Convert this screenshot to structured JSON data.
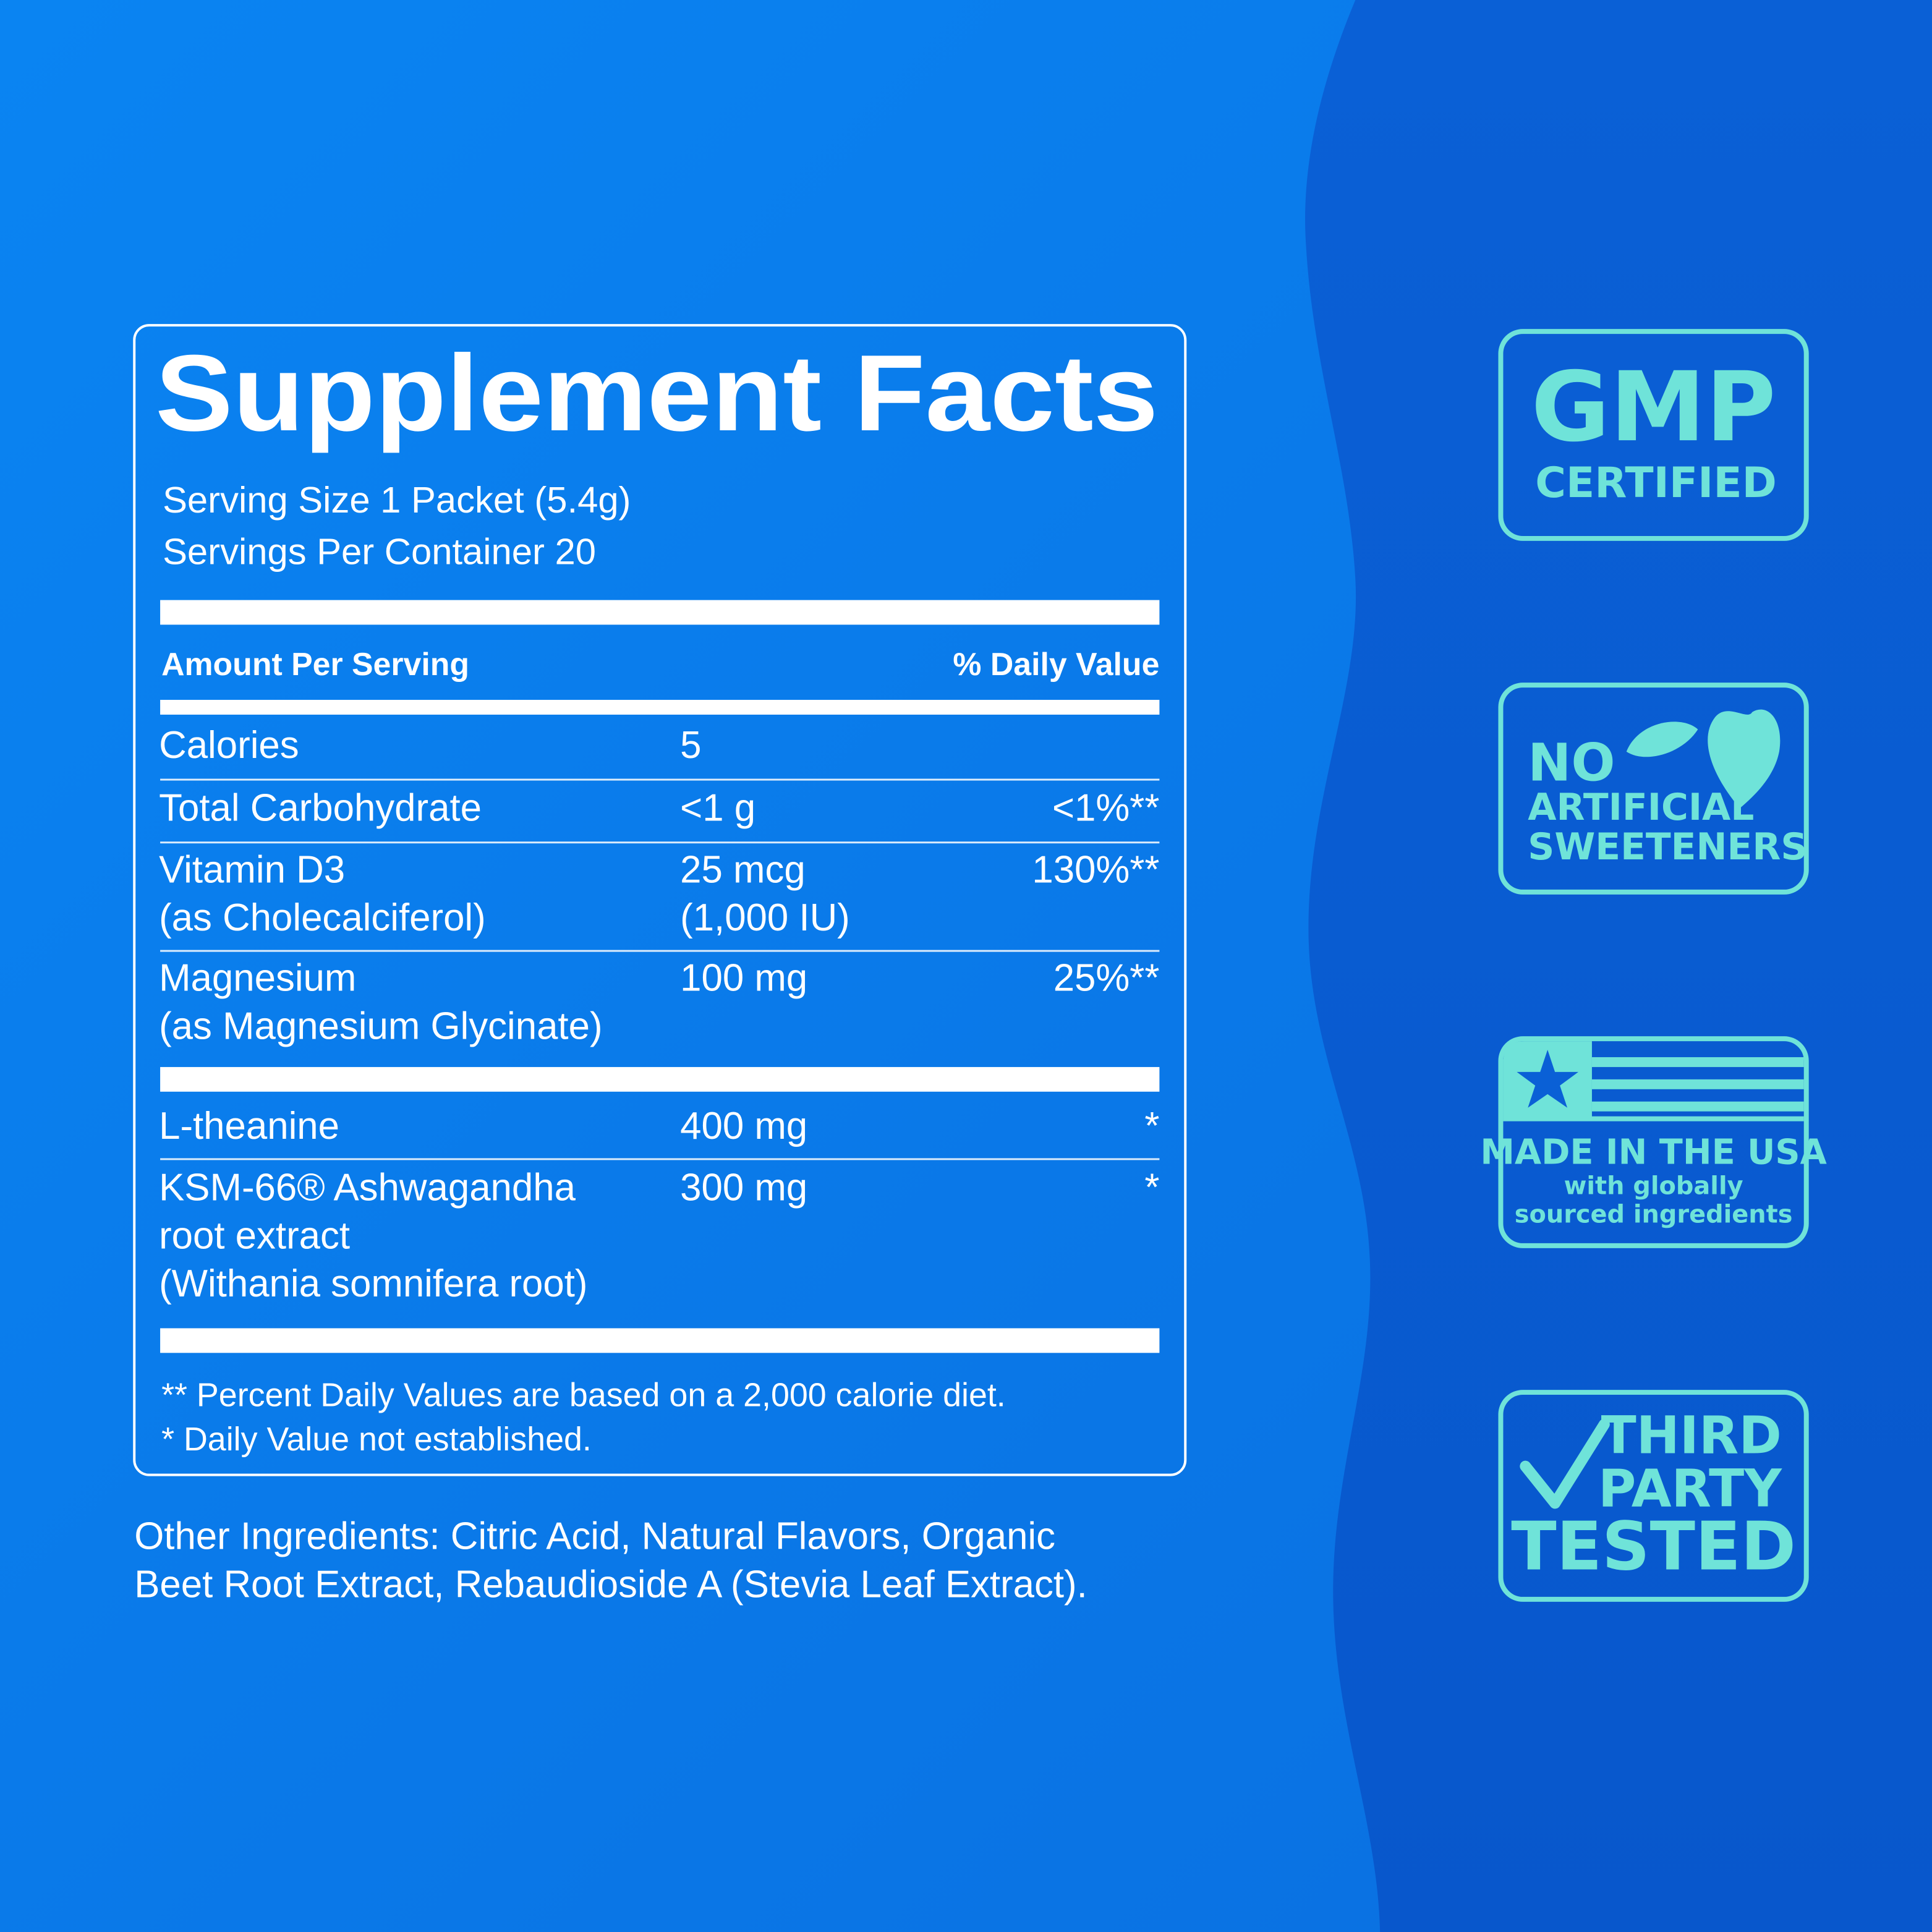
{
  "title": "Supplement Facts",
  "serving": [
    "Serving Size 1 Packet (5.4g)",
    "Servings Per Container 20"
  ],
  "header": {
    "amount": "Amount Per Serving",
    "daily_value": "% Daily Value"
  },
  "rows": [
    {
      "name": [
        "Calories"
      ],
      "amount": [
        "5"
      ]
    },
    {
      "name": [
        "Total Carbohydrate"
      ],
      "amount": [
        "<1 g"
      ],
      "daily_value": "<1%**"
    },
    {
      "name": [
        "Vitamin D3",
        "(as Cholecalciferol)"
      ],
      "amount": [
        "25 mcg",
        "(1,000 IU)"
      ],
      "daily_value": "130%**"
    },
    {
      "name": [
        "Magnesium",
        "(as Magnesium Glycinate)"
      ],
      "amount": [
        "100 mg"
      ],
      "daily_value": "25%**"
    },
    {
      "name": [
        "L-theanine"
      ],
      "amount": [
        "400 mg"
      ],
      "daily_value": "*"
    },
    {
      "name": [
        "KSM-66® Ashwagandha",
        "root extract",
        "(Withania somnifera root)"
      ],
      "amount": [
        "300 mg"
      ],
      "daily_value": "*"
    }
  ],
  "footnotes": [
    "** Percent Daily Values are based on a 2,000 calorie diet.",
    "* Daily Value not established."
  ],
  "other_ingredients": [
    "Other Ingredients: Citric Acid, Natural Flavors, Organic",
    "Beet Root Extract, Rebaudioside A (Stevia Leaf Extract)."
  ],
  "badges": [
    {
      "lines": [
        "GMP",
        "CERTIFIED"
      ]
    },
    {
      "lines": [
        "NO",
        "ARTIFICIAL",
        "SWEETENERS"
      ]
    },
    {
      "lines": [
        "MADE IN THE USA",
        "with globally",
        "sourced ingredients"
      ]
    },
    {
      "lines": [
        "THIRD",
        "PARTY",
        "TESTED"
      ]
    }
  ]
}
